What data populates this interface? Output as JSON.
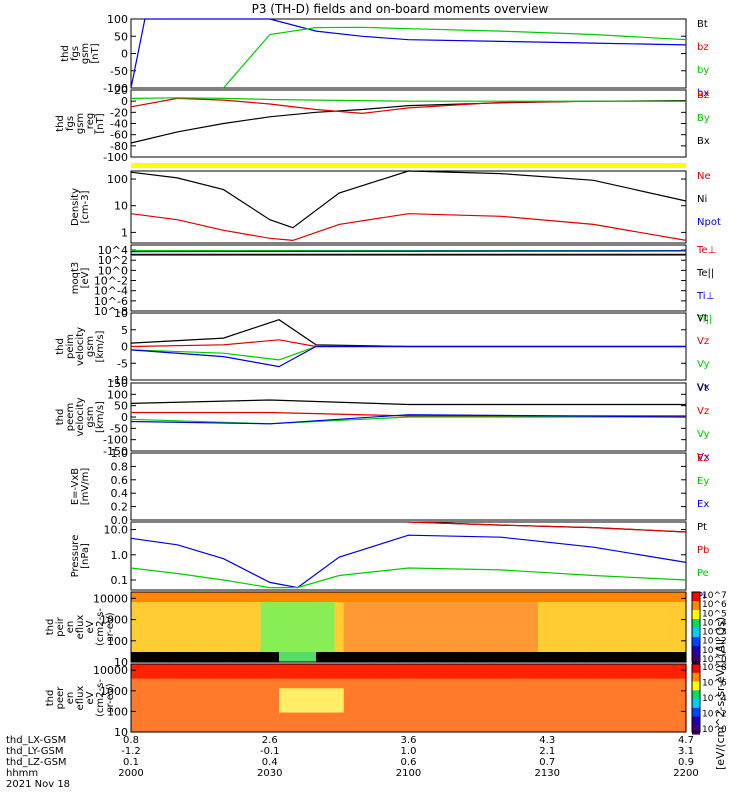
{
  "title": "P3 (TH-D) fields and on-board moments overview",
  "footer": {
    "row_labels": [
      "thd_LX-GSM",
      "thd_LY-GSM",
      "thd_LZ-GSM",
      "hhmm",
      "2021 Nov 18"
    ],
    "columns": [
      [
        "0.8",
        "-1.2",
        "0.1",
        "2000"
      ],
      [
        "2.6",
        "-0.1",
        "0.4",
        "2030"
      ],
      [
        "3.6",
        "1.0",
        "0.6",
        "2100"
      ],
      [
        "4.3",
        "2.1",
        "0.7",
        "2130"
      ],
      [
        "4.7",
        "3.1",
        "0.9",
        "2200"
      ]
    ]
  },
  "colorbar_label": "[eV/(cm^2-s-sr-eV)] (All Qs)",
  "colors": {
    "black": "#000000",
    "red": "#dd0000",
    "green": "#00cc00",
    "blue": "#0000dd",
    "yellow": "#ffff00"
  },
  "chart_data": [
    {
      "type": "line",
      "ylabel": [
        "thd",
        "fgs",
        "gsm",
        "[nT]"
      ],
      "ylim": [
        -100,
        100
      ],
      "yticks": [
        "100",
        "50",
        "0",
        "-50",
        "-100"
      ],
      "legend": [
        {
          "name": "Bt",
          "color": "black"
        },
        {
          "name": "bz",
          "color": "red"
        },
        {
          "name": "by",
          "color": "green"
        },
        {
          "name": "bx",
          "color": "blue"
        }
      ],
      "x": [
        2000,
        2003,
        2010,
        2020,
        2030,
        2040,
        2050,
        2100,
        2120,
        2140,
        2200
      ],
      "series": [
        {
          "name": "bx",
          "color": "blue",
          "values": [
            -100,
            120,
            null,
            null,
            100,
            65,
            50,
            40,
            35,
            30,
            25
          ]
        },
        {
          "name": "by",
          "color": "green",
          "values": [
            null,
            null,
            null,
            -100,
            55,
            75,
            76,
            72,
            65,
            55,
            40
          ]
        }
      ]
    },
    {
      "type": "line",
      "ylabel": [
        "thd",
        "fgs",
        "gsm",
        "_reg",
        "[nT]"
      ],
      "ylim": [
        -100,
        20
      ],
      "yticks": [
        "20",
        "0",
        "-20",
        "-40",
        "-60",
        "-80",
        "-100"
      ],
      "legend": [
        {
          "name": "Bz",
          "color": "red"
        },
        {
          "name": "By",
          "color": "green"
        },
        {
          "name": "Bx",
          "color": "black"
        }
      ],
      "x": [
        2000,
        2010,
        2020,
        2030,
        2040,
        2050,
        2100,
        2120,
        2140,
        2200
      ],
      "series": [
        {
          "name": "Bx",
          "color": "black",
          "values": [
            -75,
            -55,
            -40,
            -28,
            -20,
            -15,
            -8,
            -3,
            0,
            1
          ]
        },
        {
          "name": "Bz",
          "color": "red",
          "values": [
            -10,
            5,
            2,
            -5,
            -15,
            -22,
            -12,
            -2,
            0,
            0
          ]
        },
        {
          "name": "By",
          "color": "green",
          "values": [
            5,
            6,
            5,
            3,
            2,
            1,
            0,
            0,
            0,
            0
          ]
        }
      ]
    },
    {
      "type": "line",
      "ylabel": [
        "Density",
        "[cm-3]"
      ],
      "yscale": "log",
      "ylim": [
        0.4,
        200
      ],
      "yticks": [
        "100",
        "10",
        "1"
      ],
      "legend": [
        {
          "name": "Ne",
          "color": "red"
        },
        {
          "name": "Ni",
          "color": "black"
        },
        {
          "name": "Npot",
          "color": "blue"
        }
      ],
      "x": [
        2000,
        2010,
        2020,
        2030,
        2035,
        2045,
        2100,
        2120,
        2140,
        2200
      ],
      "series": [
        {
          "name": "Ni",
          "color": "black",
          "values": [
            180,
            110,
            40,
            3,
            1.5,
            30,
            200,
            160,
            90,
            15
          ]
        },
        {
          "name": "Ne",
          "color": "red",
          "values": [
            5,
            3,
            1.2,
            0.6,
            0.5,
            2,
            5,
            4,
            2,
            0.5
          ]
        },
        {
          "name": "Npot",
          "color": "blue",
          "values": [
            null,
            null,
            null,
            null,
            null,
            null,
            null,
            null,
            null,
            120
          ]
        }
      ]
    },
    {
      "type": "line",
      "ylabel": [
        "moqt3",
        "[eV]"
      ],
      "yscale": "log",
      "ylim": [
        1e-08,
        100000.0
      ],
      "yticks": [
        "10^4",
        "10^2",
        "10^0",
        "10^-2",
        "10^-4",
        "10^-6",
        "10^-8"
      ],
      "legend": [
        {
          "name": "Te⊥",
          "color": "red"
        },
        {
          "name": "Te||",
          "color": "black"
        },
        {
          "name": "Ti⊥",
          "color": "blue"
        },
        {
          "name": "Ti||",
          "color": "green"
        }
      ],
      "x": [
        2000,
        2200
      ],
      "series": [
        {
          "name": "Ti||",
          "color": "green",
          "values": [
            8000,
            8000
          ]
        },
        {
          "name": "Ti⊥",
          "color": "blue",
          "values": [
            5000,
            7000
          ]
        },
        {
          "name": "Te⊥",
          "color": "red",
          "values": [
            1000,
            1000
          ]
        },
        {
          "name": "Te||",
          "color": "black",
          "values": [
            1500,
            1500
          ]
        }
      ]
    },
    {
      "type": "line",
      "ylabel": [
        "thd",
        "peim",
        "velocity",
        "gsm",
        "[km/s]"
      ],
      "ylim": [
        -10,
        10
      ],
      "yticks": [
        "10",
        "5",
        "0",
        "-5",
        "-10"
      ],
      "legend": [
        {
          "name": "Vt",
          "color": "black"
        },
        {
          "name": "Vz",
          "color": "red"
        },
        {
          "name": "Vy",
          "color": "green"
        },
        {
          "name": "Vx",
          "color": "blue"
        }
      ],
      "x": [
        2000,
        2020,
        2032,
        2040,
        2100,
        2200
      ],
      "series": [
        {
          "name": "Vt",
          "color": "black",
          "values": [
            1,
            2.5,
            8,
            0.5,
            0,
            0
          ]
        },
        {
          "name": "Vz",
          "color": "red",
          "values": [
            0,
            0.5,
            2,
            0,
            0,
            0
          ]
        },
        {
          "name": "Vy",
          "color": "green",
          "values": [
            -1,
            -2,
            -4,
            0,
            0,
            0
          ]
        },
        {
          "name": "Vx",
          "color": "blue",
          "values": [
            -1,
            -3,
            -6,
            0,
            0,
            0
          ]
        }
      ]
    },
    {
      "type": "line",
      "ylabel": [
        "thd",
        "peem",
        "velocity",
        "gsm",
        "[km/s]"
      ],
      "ylim": [
        -150,
        150
      ],
      "yticks": [
        "150",
        "100",
        "50",
        "0",
        "-50",
        "-100",
        "-150"
      ],
      "legend": [
        {
          "name": "Vt",
          "color": "black"
        },
        {
          "name": "Vz",
          "color": "red"
        },
        {
          "name": "Vy",
          "color": "green"
        },
        {
          "name": "Vx",
          "color": "blue"
        }
      ],
      "x": [
        2000,
        2030,
        2100,
        2200
      ],
      "series": [
        {
          "name": "Vt",
          "color": "black",
          "values": [
            60,
            75,
            55,
            55
          ]
        },
        {
          "name": "Vz",
          "color": "red",
          "values": [
            20,
            20,
            5,
            5
          ]
        },
        {
          "name": "Vy",
          "color": "green",
          "values": [
            -10,
            -30,
            0,
            0
          ]
        },
        {
          "name": "Vx",
          "color": "blue",
          "values": [
            -20,
            -30,
            10,
            0
          ]
        }
      ]
    },
    {
      "type": "line",
      "ylabel": [
        "E=-VxB",
        "[mV/m]"
      ],
      "ylim": [
        0,
        1
      ],
      "yticks": [
        "1.0",
        "0.8",
        "0.6",
        "0.4",
        "0.2",
        "0.0"
      ],
      "legend": [
        {
          "name": "Ez",
          "color": "red"
        },
        {
          "name": "Ey",
          "color": "green"
        },
        {
          "name": "Ex",
          "color": "blue"
        }
      ],
      "x": [],
      "series": []
    },
    {
      "type": "line",
      "ylabel": [
        "Pressure",
        "[nPa]"
      ],
      "yscale": "log",
      "ylim": [
        0.04,
        20
      ],
      "yticks": [
        "10.0",
        "1.0",
        "0.1"
      ],
      "legend": [
        {
          "name": "Pt",
          "color": "black"
        },
        {
          "name": "Pb",
          "color": "red"
        },
        {
          "name": "Pe",
          "color": "green"
        },
        {
          "name": "Pi",
          "color": "blue"
        }
      ],
      "x": [
        2000,
        2010,
        2020,
        2030,
        2036,
        2045,
        2100,
        2120,
        2140,
        2200
      ],
      "series": [
        {
          "name": "Pi",
          "color": "blue",
          "values": [
            4.5,
            2.5,
            0.7,
            0.08,
            0.05,
            0.8,
            6,
            5,
            2,
            0.5
          ]
        },
        {
          "name": "Pe",
          "color": "green",
          "values": [
            0.3,
            0.18,
            0.1,
            0.05,
            0.05,
            0.15,
            0.3,
            0.25,
            0.15,
            0.1
          ]
        },
        {
          "name": "Pt",
          "color": "black",
          "values": [
            null,
            null,
            null,
            null,
            null,
            null,
            20,
            15,
            12,
            8
          ]
        },
        {
          "name": "Pb",
          "color": "red",
          "values": [
            null,
            null,
            null,
            null,
            null,
            null,
            20,
            15,
            12,
            8
          ]
        }
      ]
    },
    {
      "type": "heatmap",
      "ylabel": [
        "thd",
        "peir",
        "en",
        "eflux",
        "eV",
        "(cm2-s-",
        "sr-eV)"
      ],
      "yscale": "log",
      "ylim": [
        10,
        20000
      ],
      "yticks": [
        "10000",
        "1000",
        "100",
        "10"
      ]
    },
    {
      "type": "heatmap",
      "ylabel": [
        "thd",
        "peer",
        "en",
        "eflux",
        "eV",
        "(cm2-s-",
        "sr-eV)"
      ],
      "yscale": "log",
      "ylim": [
        10,
        20000
      ],
      "yticks": [
        "10000",
        "1000",
        "100",
        "10"
      ]
    }
  ],
  "colorbars": [
    {
      "ticks": [
        "10^7",
        "10^6",
        "10^5",
        "10^4",
        "10^3",
        "10^2",
        "10^1",
        "10^0"
      ]
    },
    {
      "ticks": [
        "10^8",
        "10^6",
        "10^4",
        "10^2",
        "10^0"
      ]
    }
  ]
}
